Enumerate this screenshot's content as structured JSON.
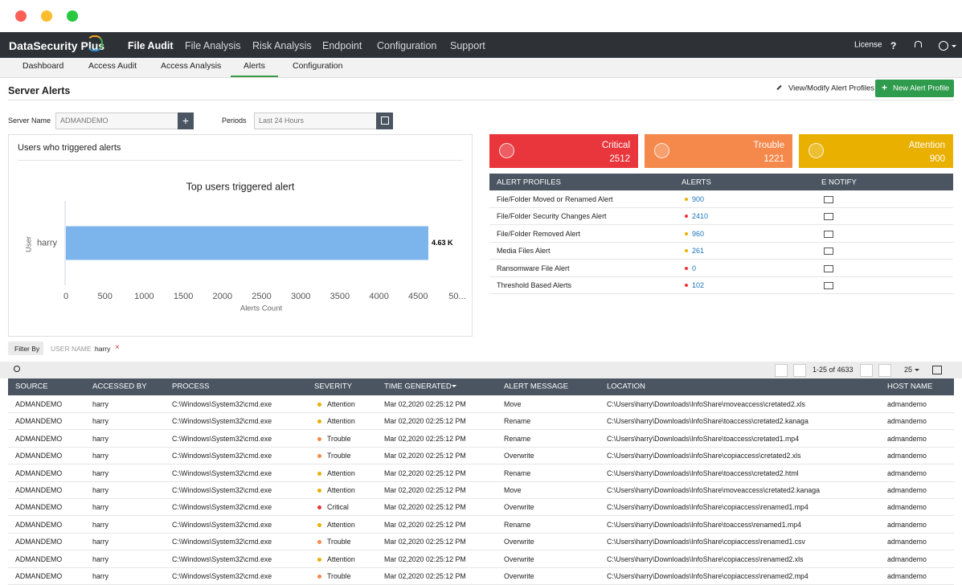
{
  "nav": {
    "logo": "DataSecurity Plus",
    "tabs": [
      "File Audit",
      "File Analysis",
      "Risk Analysis",
      "Endpoint",
      "Configuration",
      "Support"
    ],
    "active": 0,
    "license": "License",
    "help": "?"
  },
  "subnav": {
    "tabs": [
      "Dashboard",
      "Access Audit",
      "Access Analysis",
      "Alerts",
      "Configuration"
    ],
    "active": 3
  },
  "header": {
    "title": "Server Alerts",
    "modify_link": "View/Modify Alert Profiles",
    "new_button": "New Alert Profile"
  },
  "filters": {
    "server_label": "Server Name",
    "server_value": "ADMANDEMO",
    "period_label": "Periods",
    "period_value": "Last 24 Hours"
  },
  "panel": {
    "title": "Users who triggered alerts",
    "chart_data": {
      "type": "bar",
      "title": "Top users triggered alert",
      "y_label": "User",
      "x_label": "Alerts Count",
      "categories": [
        "harry"
      ],
      "values": [
        4630
      ],
      "value_labels": [
        "4.63 K"
      ],
      "color": "#7cb5ec",
      "xlim": [
        0,
        5000
      ],
      "xticks": [
        0,
        500,
        1000,
        1500,
        2000,
        2500,
        3000,
        3500,
        4000,
        4500,
        {
          "value": 5000,
          "label": "50..."
        }
      ]
    }
  },
  "cards": [
    {
      "label": "Critical",
      "value": 2512,
      "color": "#e8363c"
    },
    {
      "label": "Trouble",
      "value": 1221,
      "color": "#f5894b"
    },
    {
      "label": "Attention",
      "value": 900,
      "color": "#e9b000"
    }
  ],
  "profiles": {
    "columns": [
      "ALERT PROFILES",
      "ALERTS",
      "E NOTIFY"
    ],
    "rows": [
      {
        "name": "File/Folder Moved or Renamed Alert",
        "count": 900,
        "color": "#e9b000"
      },
      {
        "name": "File/Folder Security Changes Alert",
        "count": 2410,
        "color": "#e8363c"
      },
      {
        "name": "File/Folder Removed Alert",
        "count": 960,
        "color": "#e9b000"
      },
      {
        "name": "Media Files Alert",
        "count": 261,
        "color": "#e9b000"
      },
      {
        "name": "Ransomware File Alert",
        "count": 0,
        "color": "#e8363c"
      },
      {
        "name": "Threshold Based Alerts",
        "count": 102,
        "color": "#e8363c"
      }
    ]
  },
  "filter_by": {
    "label": "Filter By",
    "key": "USER NAME :",
    "value": "harry"
  },
  "pager": {
    "range": "1-25 of 4633",
    "page_size": "25"
  },
  "table": {
    "columns": [
      "SOURCE",
      "ACCESSED BY",
      "PROCESS",
      "SEVERITY",
      "TIME GENERATED",
      "ALERT MESSAGE",
      "LOCATION",
      "HOST NAME"
    ],
    "rows": [
      [
        "ADMANDEMO",
        "harry",
        "C:\\Windows\\System32\\cmd.exe",
        "Attention",
        "Mar 02,2020 02:25:12 PM",
        "Move",
        "C:\\Users\\harry\\Downloads\\InfoShare\\moveaccess\\cretated2.xls",
        "admandemo"
      ],
      [
        "ADMANDEMO",
        "harry",
        "C:\\Windows\\System32\\cmd.exe",
        "Attention",
        "Mar 02,2020 02:25:12 PM",
        "Rename",
        "C:\\Users\\harry\\Downloads\\InfoShare\\toaccess\\cretated2.kanaga",
        "admandemo"
      ],
      [
        "ADMANDEMO",
        "harry",
        "C:\\Windows\\System32\\cmd.exe",
        "Trouble",
        "Mar 02,2020 02:25:12 PM",
        "Rename",
        "C:\\Users\\harry\\Downloads\\InfoShare\\toaccess\\cretated1.mp4",
        "admandemo"
      ],
      [
        "ADMANDEMO",
        "harry",
        "C:\\Windows\\System32\\cmd.exe",
        "Trouble",
        "Mar 02,2020 02:25:12 PM",
        "Overwrite",
        "C:\\Users\\harry\\Downloads\\InfoShare\\copiaccess\\cretated2.xls",
        "admandemo"
      ],
      [
        "ADMANDEMO",
        "harry",
        "C:\\Windows\\System32\\cmd.exe",
        "Attention",
        "Mar 02,2020 02:25:12 PM",
        "Rename",
        "C:\\Users\\harry\\Downloads\\InfoShare\\toaccess\\cretated2.html",
        "admandemo"
      ],
      [
        "ADMANDEMO",
        "harry",
        "C:\\Windows\\System32\\cmd.exe",
        "Attention",
        "Mar 02,2020 02:25:12 PM",
        "Move",
        "C:\\Users\\harry\\Downloads\\InfoShare\\moveaccess\\cretated2.kanaga",
        "admandemo"
      ],
      [
        "ADMANDEMO",
        "harry",
        "C:\\Windows\\System32\\cmd.exe",
        "Critical",
        "Mar 02,2020 02:25:12 PM",
        "Overwrite",
        "C:\\Users\\harry\\Downloads\\InfoShare\\copiaccess\\renamed1.mp4",
        "admandemo"
      ],
      [
        "ADMANDEMO",
        "harry",
        "C:\\Windows\\System32\\cmd.exe",
        "Attention",
        "Mar 02,2020 02:25:12 PM",
        "Rename",
        "C:\\Users\\harry\\Downloads\\InfoShare\\toaccess\\renamed1.mp4",
        "admandemo"
      ],
      [
        "ADMANDEMO",
        "harry",
        "C:\\Windows\\System32\\cmd.exe",
        "Trouble",
        "Mar 02,2020 02:25:12 PM",
        "Overwrite",
        "C:\\Users\\harry\\Downloads\\InfoShare\\copiaccess\\renamed1.csv",
        "admandemo"
      ],
      [
        "ADMANDEMO",
        "harry",
        "C:\\Windows\\System32\\cmd.exe",
        "Attention",
        "Mar 02,2020 02:25:12 PM",
        "Overwrite",
        "C:\\Users\\harry\\Downloads\\InfoShare\\copiaccess\\renamed2.xls",
        "admandemo"
      ],
      [
        "ADMANDEMO",
        "harry",
        "C:\\Windows\\System32\\cmd.exe",
        "Trouble",
        "Mar 02,2020 02:25:12 PM",
        "Overwrite",
        "C:\\Users\\harry\\Downloads\\InfoShare\\copiaccess\\renamed2.mp4",
        "admandemo"
      ]
    ],
    "severity_colors": [
      "#e9b000",
      "#e9b000",
      "#f5894b",
      "#f5894b",
      "#e9b000",
      "#e9b000",
      "#e8363c",
      "#e9b000",
      "#f5894b",
      "#e9b000",
      "#f5894b"
    ]
  }
}
